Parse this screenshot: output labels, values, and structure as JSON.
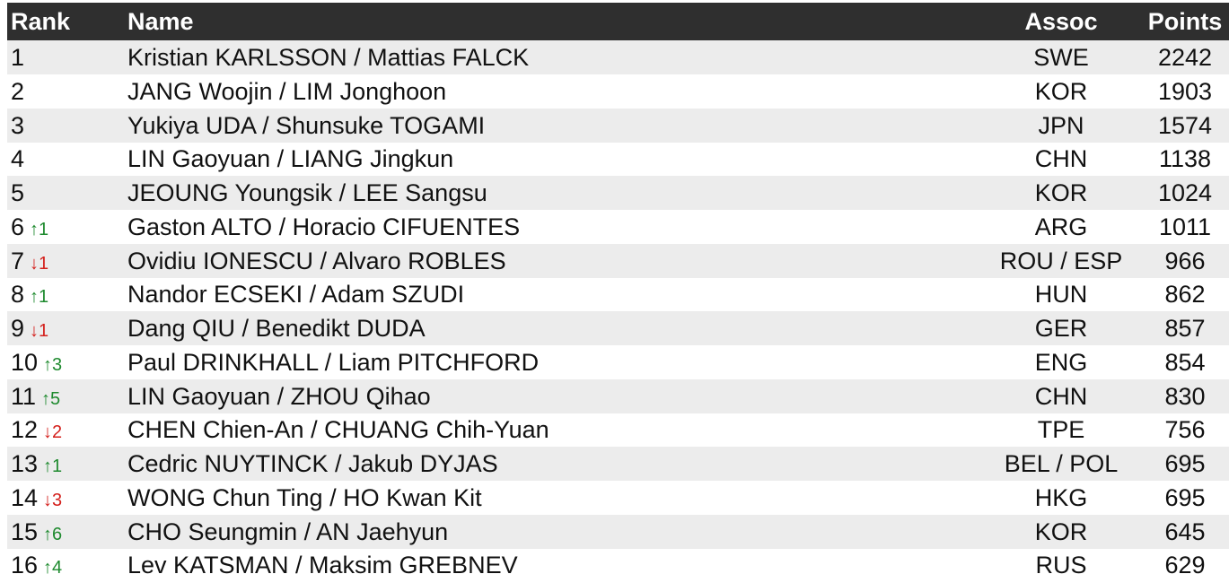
{
  "table": {
    "header": {
      "rank": "Rank",
      "name": "Name",
      "assoc": "Assoc",
      "points": "Points"
    },
    "rows": [
      {
        "rank": 1,
        "name": "Kristian KARLSSON / Mattias FALCK",
        "assoc": "SWE",
        "points": 2242
      },
      {
        "rank": 2,
        "name": "JANG Woojin / LIM Jonghoon",
        "assoc": "KOR",
        "points": 1903
      },
      {
        "rank": 3,
        "name": "Yukiya UDA / Shunsuke TOGAMI",
        "assoc": "JPN",
        "points": 1574
      },
      {
        "rank": 4,
        "name": "LIN Gaoyuan / LIANG Jingkun",
        "assoc": "CHN",
        "points": 1138
      },
      {
        "rank": 5,
        "name": "JEOUNG Youngsik / LEE Sangsu",
        "assoc": "KOR",
        "points": 1024
      },
      {
        "rank": 6,
        "change": "↑1",
        "change_color": "#1e8a2e",
        "name": "Gaston ALTO / Horacio CIFUENTES",
        "assoc": "ARG",
        "points": 1011
      },
      {
        "rank": 7,
        "change": "↓1",
        "change_color": "#d4201c",
        "name": "Ovidiu IONESCU / Alvaro ROBLES",
        "assoc": "ROU / ESP",
        "points": 966
      },
      {
        "rank": 8,
        "change": "↑1",
        "change_color": "#1e8a2e",
        "name": "Nandor ECSEKI / Adam SZUDI",
        "assoc": "HUN",
        "points": 862
      },
      {
        "rank": 9,
        "change": "↓1",
        "change_color": "#d4201c",
        "name": "Dang QIU / Benedikt DUDA",
        "assoc": "GER",
        "points": 857
      },
      {
        "rank": 10,
        "change": "↑3",
        "change_color": "#1e8a2e",
        "name": "Paul DRINKHALL / Liam PITCHFORD",
        "assoc": "ENG",
        "points": 854
      },
      {
        "rank": 11,
        "change": "↑5",
        "change_color": "#1e8a2e",
        "name": "LIN Gaoyuan / ZHOU Qihao",
        "assoc": "CHN",
        "points": 830
      },
      {
        "rank": 12,
        "change": "↓2",
        "change_color": "#d4201c",
        "name": "CHEN Chien-An / CHUANG Chih-Yuan",
        "assoc": "TPE",
        "points": 756
      },
      {
        "rank": 13,
        "change": "↑1",
        "change_color": "#1e8a2e",
        "name": "Cedric NUYTINCK / Jakub DYJAS",
        "assoc": "BEL / POL",
        "points": 695
      },
      {
        "rank": 14,
        "change": "↓3",
        "change_color": "#d4201c",
        "name": "WONG Chun Ting / HO Kwan Kit",
        "assoc": "HKG",
        "points": 695
      },
      {
        "rank": 15,
        "change": "↑6",
        "change_color": "#1e8a2e",
        "name": "CHO Seungmin / AN Jaehyun",
        "assoc": "KOR",
        "points": 645
      },
      {
        "rank": 16,
        "change": "↑4",
        "change_color": "#1e8a2e",
        "name": "Lev KATSMAN / Maksim GREBNEV",
        "assoc": "RUS",
        "points": 629
      }
    ]
  }
}
